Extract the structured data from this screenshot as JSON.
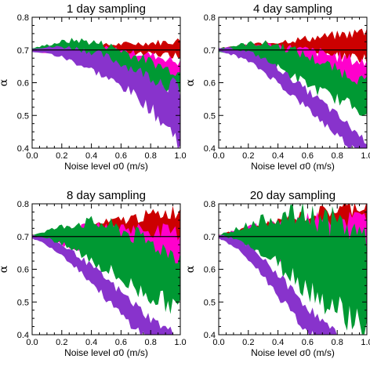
{
  "chart_data": [
    {
      "type": "area",
      "title": "1 day sampling",
      "xlabel": "Noise level σ0 (m/s)",
      "ylabel": "α",
      "xlim": [
        0.0,
        1.0
      ],
      "ylim": [
        0.4,
        0.8
      ],
      "x_ticks": [
        "0.0",
        "0.2",
        "0.4",
        "0.6",
        "0.8",
        "1.0"
      ],
      "y_ticks": [
        "0.4",
        "0.5",
        "0.6",
        "0.7",
        "0.8"
      ],
      "reference_line": 0.7,
      "x": [
        0.0,
        0.1,
        0.2,
        0.3,
        0.4,
        0.5,
        0.6,
        0.7,
        0.8,
        0.9,
        1.0
      ],
      "series": [
        {
          "color": "#cc0000",
          "upper": [
            0.705,
            0.708,
            0.71,
            0.712,
            0.713,
            0.715,
            0.718,
            0.72,
            0.722,
            0.724,
            0.728
          ],
          "lower": [
            0.695,
            0.694,
            0.693,
            0.692,
            0.69,
            0.689,
            0.688,
            0.687,
            0.686,
            0.685,
            0.685
          ]
        },
        {
          "color": "#ff00cc",
          "upper": [
            0.705,
            0.71,
            0.712,
            0.712,
            0.71,
            0.705,
            0.7,
            0.69,
            0.685,
            0.675,
            0.66
          ],
          "lower": [
            0.695,
            0.693,
            0.69,
            0.685,
            0.678,
            0.67,
            0.66,
            0.648,
            0.635,
            0.62,
            0.61
          ]
        },
        {
          "color": "#009933",
          "upper": [
            0.705,
            0.715,
            0.725,
            0.73,
            0.725,
            0.715,
            0.7,
            0.68,
            0.665,
            0.645,
            0.63
          ],
          "lower": [
            0.695,
            0.693,
            0.688,
            0.68,
            0.665,
            0.645,
            0.625,
            0.605,
            0.59,
            0.575,
            0.56
          ]
        },
        {
          "color": "#8833cc",
          "upper": [
            0.705,
            0.708,
            0.71,
            0.705,
            0.695,
            0.68,
            0.66,
            0.64,
            0.62,
            0.6,
            0.58
          ],
          "lower": [
            0.695,
            0.69,
            0.678,
            0.66,
            0.64,
            0.615,
            0.59,
            0.56,
            0.52,
            0.47,
            0.42
          ]
        }
      ]
    },
    {
      "type": "area",
      "title": "4 day sampling",
      "xlabel": "Noise level σ0 (m/s)",
      "ylabel": "α",
      "xlim": [
        0.0,
        1.0
      ],
      "ylim": [
        0.4,
        0.8
      ],
      "x_ticks": [
        "0.0",
        "0.2",
        "0.4",
        "0.6",
        "0.8",
        "1.0"
      ],
      "y_ticks": [
        "0.4",
        "0.5",
        "0.6",
        "0.7",
        "0.8"
      ],
      "reference_line": 0.7,
      "x": [
        0.0,
        0.1,
        0.2,
        0.3,
        0.4,
        0.5,
        0.6,
        0.7,
        0.8,
        0.9,
        1.0
      ],
      "series": [
        {
          "color": "#cc0000",
          "upper": [
            0.705,
            0.71,
            0.715,
            0.72,
            0.725,
            0.73,
            0.735,
            0.74,
            0.745,
            0.75,
            0.76
          ],
          "lower": [
            0.695,
            0.692,
            0.69,
            0.688,
            0.686,
            0.684,
            0.682,
            0.68,
            0.679,
            0.678,
            0.675
          ]
        },
        {
          "color": "#ff00cc",
          "upper": [
            0.705,
            0.71,
            0.715,
            0.715,
            0.712,
            0.705,
            0.698,
            0.69,
            0.68,
            0.67,
            0.66
          ],
          "lower": [
            0.695,
            0.69,
            0.68,
            0.668,
            0.655,
            0.64,
            0.625,
            0.61,
            0.595,
            0.58,
            0.565
          ]
        },
        {
          "color": "#009933",
          "upper": [
            0.705,
            0.712,
            0.72,
            0.72,
            0.715,
            0.7,
            0.68,
            0.66,
            0.64,
            0.62,
            0.6
          ],
          "lower": [
            0.695,
            0.69,
            0.68,
            0.665,
            0.645,
            0.62,
            0.595,
            0.57,
            0.55,
            0.53,
            0.51
          ]
        },
        {
          "color": "#8833cc",
          "upper": [
            0.705,
            0.705,
            0.695,
            0.675,
            0.645,
            0.61,
            0.575,
            0.54,
            0.5,
            0.46,
            0.42
          ],
          "lower": [
            0.695,
            0.685,
            0.665,
            0.635,
            0.6,
            0.56,
            0.52,
            0.48,
            0.44,
            0.4,
            0.38
          ]
        }
      ]
    },
    {
      "type": "area",
      "title": "8 day sampling",
      "xlabel": "Noise level σ0 (m/s)",
      "ylabel": "α",
      "xlim": [
        0.0,
        1.0
      ],
      "ylim": [
        0.4,
        0.8
      ],
      "x_ticks": [
        "0.0",
        "0.2",
        "0.4",
        "0.6",
        "0.8",
        "1.0"
      ],
      "y_ticks": [
        "0.4",
        "0.5",
        "0.6",
        "0.7",
        "0.8"
      ],
      "reference_line": 0.7,
      "x": [
        0.0,
        0.1,
        0.2,
        0.3,
        0.4,
        0.5,
        0.6,
        0.7,
        0.8,
        0.9,
        1.0
      ],
      "series": [
        {
          "color": "#cc0000",
          "upper": [
            0.705,
            0.712,
            0.72,
            0.728,
            0.735,
            0.742,
            0.75,
            0.758,
            0.765,
            0.772,
            0.78
          ],
          "lower": [
            0.695,
            0.69,
            0.686,
            0.682,
            0.678,
            0.675,
            0.672,
            0.67,
            0.668,
            0.665,
            0.66
          ]
        },
        {
          "color": "#ff00cc",
          "upper": [
            0.705,
            0.712,
            0.72,
            0.725,
            0.728,
            0.73,
            0.728,
            0.725,
            0.72,
            0.715,
            0.71
          ],
          "lower": [
            0.695,
            0.688,
            0.678,
            0.665,
            0.652,
            0.64,
            0.628,
            0.616,
            0.605,
            0.595,
            0.585
          ]
        },
        {
          "color": "#009933",
          "upper": [
            0.705,
            0.718,
            0.73,
            0.74,
            0.742,
            0.735,
            0.72,
            0.7,
            0.68,
            0.66,
            0.64
          ],
          "lower": [
            0.695,
            0.688,
            0.675,
            0.655,
            0.63,
            0.6,
            0.57,
            0.54,
            0.52,
            0.5,
            0.48
          ]
        },
        {
          "color": "#8833cc",
          "upper": [
            0.705,
            0.695,
            0.675,
            0.645,
            0.61,
            0.57,
            0.53,
            0.49,
            0.45,
            0.42,
            0.4
          ],
          "lower": [
            0.695,
            0.675,
            0.645,
            0.605,
            0.56,
            0.51,
            0.46,
            0.42,
            0.38,
            0.36,
            0.35
          ]
        }
      ]
    },
    {
      "type": "area",
      "title": "20 day sampling",
      "xlabel": "Noise level σ0 (m/s)",
      "ylabel": "α",
      "xlim": [
        0.0,
        1.0
      ],
      "ylim": [
        0.4,
        0.8
      ],
      "x_ticks": [
        "0.0",
        "0.2",
        "0.4",
        "0.6",
        "0.8",
        "1.0"
      ],
      "y_ticks": [
        "0.4",
        "0.5",
        "0.6",
        "0.7",
        "0.8"
      ],
      "reference_line": 0.7,
      "x": [
        0.0,
        0.1,
        0.2,
        0.3,
        0.4,
        0.5,
        0.6,
        0.7,
        0.8,
        0.9,
        1.0
      ],
      "series": [
        {
          "color": "#cc0000",
          "upper": [
            0.705,
            0.715,
            0.725,
            0.735,
            0.745,
            0.755,
            0.765,
            0.775,
            0.782,
            0.79,
            0.8
          ],
          "lower": [
            0.695,
            0.69,
            0.685,
            0.68,
            0.676,
            0.672,
            0.668,
            0.665,
            0.662,
            0.66,
            0.658
          ]
        },
        {
          "color": "#ff00cc",
          "upper": [
            0.705,
            0.715,
            0.725,
            0.735,
            0.742,
            0.748,
            0.752,
            0.755,
            0.755,
            0.752,
            0.75
          ],
          "lower": [
            0.695,
            0.685,
            0.672,
            0.658,
            0.642,
            0.626,
            0.61,
            0.595,
            0.58,
            0.565,
            0.55
          ]
        },
        {
          "color": "#009933",
          "upper": [
            0.705,
            0.72,
            0.735,
            0.75,
            0.76,
            0.765,
            0.765,
            0.755,
            0.74,
            0.72,
            0.7
          ],
          "lower": [
            0.695,
            0.685,
            0.668,
            0.645,
            0.615,
            0.58,
            0.545,
            0.51,
            0.48,
            0.455,
            0.43
          ]
        },
        {
          "color": "#8833cc",
          "upper": [
            0.705,
            0.695,
            0.67,
            0.63,
            0.585,
            0.535,
            0.485,
            0.44,
            0.4,
            0.37,
            0.35
          ],
          "lower": [
            0.695,
            0.67,
            0.63,
            0.58,
            0.52,
            0.46,
            0.41,
            0.37,
            0.34,
            0.32,
            0.3
          ]
        }
      ]
    }
  ]
}
